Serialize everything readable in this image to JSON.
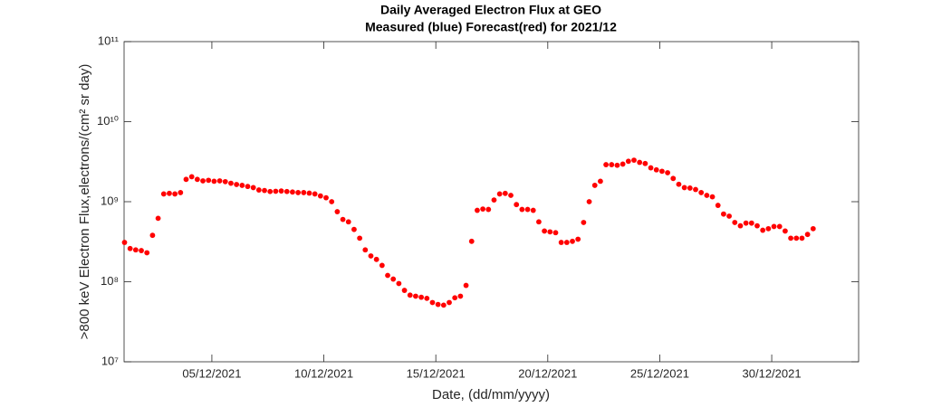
{
  "chart_data": {
    "type": "scatter",
    "title": "Daily Averaged Electron Flux at GEO",
    "subtitle": "Measured (blue) Forecast(red) for 2021/12",
    "x_label": "Date, (dd/mm/yyyy)",
    "y_label": ">800 keV Electron Flux,electrons/(cm² sr day)",
    "yscale": "log",
    "xlim": [
      1.08,
      33.88
    ],
    "ylim": [
      10000000,
      100000000000
    ],
    "xticks": [
      {
        "value": 5,
        "label": "05/12/2021"
      },
      {
        "value": 10,
        "label": "10/12/2021"
      },
      {
        "value": 15,
        "label": "15/12/2021"
      },
      {
        "value": 20,
        "label": "20/12/2021"
      },
      {
        "value": 25,
        "label": "25/12/2021"
      },
      {
        "value": 30,
        "label": "30/12/2021"
      }
    ],
    "yticks": [
      {
        "value": 10000000,
        "label": "10⁷"
      },
      {
        "value": 100000000,
        "label": "10⁸"
      },
      {
        "value": 1000000000,
        "label": "10⁹"
      },
      {
        "value": 10000000000,
        "label": "10¹⁰"
      },
      {
        "value": 100000000000,
        "label": "10¹¹"
      }
    ],
    "series": [
      {
        "color": "#ff0000",
        "x": [
          1.1,
          1.35,
          1.6,
          1.85,
          2.1,
          2.35,
          2.6,
          2.85,
          3.1,
          3.35,
          3.6,
          3.85,
          4.1,
          4.35,
          4.6,
          4.85,
          5.1,
          5.35,
          5.6,
          5.85,
          6.1,
          6.35,
          6.6,
          6.85,
          7.1,
          7.35,
          7.6,
          7.85,
          8.1,
          8.35,
          8.6,
          8.85,
          9.1,
          9.35,
          9.6,
          9.85,
          10.1,
          10.35,
          10.6,
          10.85,
          11.1,
          11.35,
          11.6,
          11.85,
          12.1,
          12.35,
          12.6,
          12.85,
          13.1,
          13.35,
          13.6,
          13.85,
          14.1,
          14.35,
          14.6,
          14.85,
          15.1,
          15.35,
          15.6,
          15.85,
          16.1,
          16.35,
          16.6,
          16.85,
          17.1,
          17.35,
          17.6,
          17.85,
          18.1,
          18.35,
          18.6,
          18.85,
          19.1,
          19.35,
          19.6,
          19.85,
          20.1,
          20.35,
          20.6,
          20.85,
          21.1,
          21.35,
          21.6,
          21.85,
          22.1,
          22.35,
          22.6,
          22.85,
          23.1,
          23.35,
          23.6,
          23.85,
          24.1,
          24.35,
          24.6,
          24.85,
          25.1,
          25.35,
          25.6,
          25.85,
          26.1,
          26.35,
          26.6,
          26.85,
          27.1,
          27.35,
          27.6,
          27.85,
          28.1,
          28.35,
          28.6,
          28.85,
          29.1,
          29.35,
          29.6,
          29.85,
          30.1,
          30.35,
          30.6,
          30.85,
          31.1,
          31.35,
          31.6,
          31.85
        ],
        "values": [
          310000000.0,
          260000000.0,
          250000000.0,
          245000000.0,
          230000000.0,
          380000000.0,
          620000000.0,
          1250000000.0,
          1270000000.0,
          1250000000.0,
          1300000000.0,
          1900000000.0,
          2050000000.0,
          1900000000.0,
          1820000000.0,
          1850000000.0,
          1800000000.0,
          1820000000.0,
          1780000000.0,
          1700000000.0,
          1640000000.0,
          1600000000.0,
          1550000000.0,
          1500000000.0,
          1400000000.0,
          1380000000.0,
          1340000000.0,
          1350000000.0,
          1360000000.0,
          1340000000.0,
          1320000000.0,
          1300000000.0,
          1300000000.0,
          1280000000.0,
          1250000000.0,
          1180000000.0,
          1120000000.0,
          1000000000.0,
          750000000.0,
          600000000.0,
          560000000.0,
          450000000.0,
          350000000.0,
          250000000.0,
          210000000.0,
          190000000.0,
          160000000.0,
          120000000.0,
          108000000.0,
          95000000.0,
          78000000.0,
          68000000.0,
          66000000.0,
          64000000.0,
          62000000.0,
          55000000.0,
          52000000.0,
          51000000.0,
          55000000.0,
          63000000.0,
          66000000.0,
          90000000.0,
          320000000.0,
          780000000.0,
          810000000.0,
          800000000.0,
          1050000000.0,
          1250000000.0,
          1270000000.0,
          1200000000.0,
          920000000.0,
          800000000.0,
          800000000.0,
          780000000.0,
          560000000.0,
          430000000.0,
          420000000.0,
          410000000.0,
          310000000.0,
          310000000.0,
          320000000.0,
          340000000.0,
          550000000.0,
          1000000000.0,
          1600000000.0,
          1800000000.0,
          2900000000.0,
          2900000000.0,
          2850000000.0,
          2950000000.0,
          3200000000.0,
          3300000000.0,
          3100000000.0,
          3000000000.0,
          2650000000.0,
          2500000000.0,
          2400000000.0,
          2300000000.0,
          1950000000.0,
          1650000000.0,
          1500000000.0,
          1480000000.0,
          1420000000.0,
          1300000000.0,
          1200000000.0,
          1150000000.0,
          900000000.0,
          700000000.0,
          660000000.0,
          550000000.0,
          500000000.0,
          540000000.0,
          540000000.0,
          500000000.0,
          440000000.0,
          460000000.0,
          490000000.0,
          490000000.0,
          430000000.0,
          350000000.0,
          350000000.0,
          350000000.0,
          390000000.0,
          460000000.0
        ]
      }
    ]
  }
}
